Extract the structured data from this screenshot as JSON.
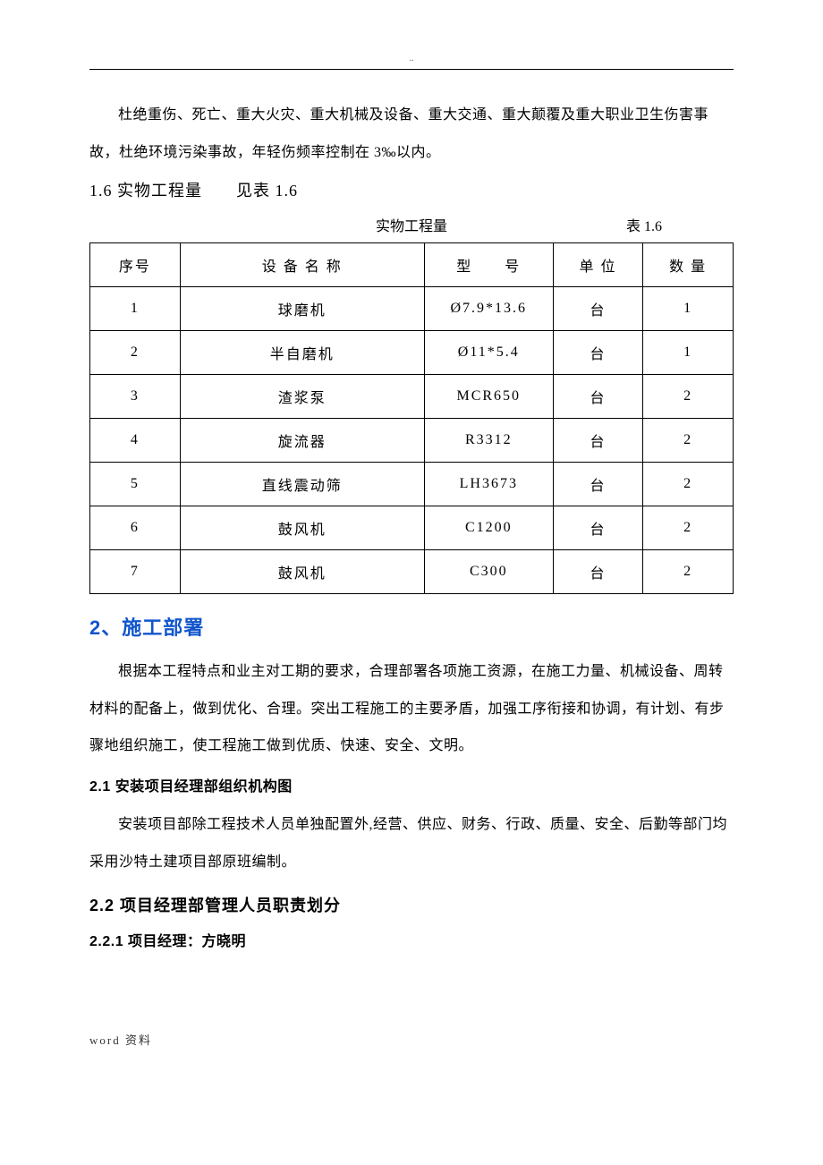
{
  "page_marker": "..",
  "intro_para": "杜绝重伤、死亡、重大火灾、重大机械及设备、重大交通、重大颠覆及重大职业卫生伤害事故，杜绝环境污染事故，年轻伤频率控制在 3‰以内。",
  "section_1_6_heading": "1.6 实物工程量　　见表 1.6",
  "table_title": "实物工程量",
  "table_label": "表 1.6",
  "table": {
    "columns": [
      "序号",
      "设 备 名 称",
      "型　　号",
      "单 位",
      "数 量"
    ],
    "rows": [
      [
        "1",
        "球磨机",
        "Ø7.9*13.6",
        "台",
        "1"
      ],
      [
        "2",
        "半自磨机",
        "Ø11*5.4",
        "台",
        "1"
      ],
      [
        "3",
        "渣浆泵",
        "MCR650",
        "台",
        "2"
      ],
      [
        "4",
        "旋流器",
        "R3312",
        "台",
        "2"
      ],
      [
        "5",
        "直线震动筛",
        "LH3673",
        "台",
        "2"
      ],
      [
        "6",
        "鼓风机",
        "C1200",
        "台",
        "2"
      ],
      [
        "7",
        "鼓风机",
        "C300",
        "台",
        "2"
      ]
    ],
    "col_widths_pct": [
      14,
      38,
      20,
      14,
      14
    ],
    "border_color": "#000000",
    "background_color": "#ffffff",
    "cell_fontsize": 16
  },
  "section_2_heading": "2、施工部署",
  "section_2_color": "#1155cc",
  "section_2_para": "根据本工程特点和业主对工期的要求，合理部署各项施工资源，在施工力量、机械设备、周转材料的配备上，做到优化、合理。突出工程施工的主要矛盾，加强工序衔接和协调，有计划、有步骤地组织施工，使工程施工做到优质、快速、安全、文明。",
  "section_2_1_heading": "2.1 安装项目经理部组织机构图",
  "section_2_1_para": "安装项目部除工程技术人员单独配置外,经营、供应、财务、行政、质量、安全、后勤等部门均采用沙特土建项目部原班编制。",
  "section_2_2_heading": "2.2 项目经理部管理人员职责划分",
  "section_2_2_1_heading": "2.2.1 项目经理：方晓明",
  "footer": "word  资料",
  "typography": {
    "body_fontsize": 16,
    "body_line_height": 2.6,
    "h2_fontsize": 22,
    "h2_color": "#1155cc",
    "text_color": "#000000",
    "font_family_body": "SimSun",
    "font_family_heading": "SimHei"
  }
}
